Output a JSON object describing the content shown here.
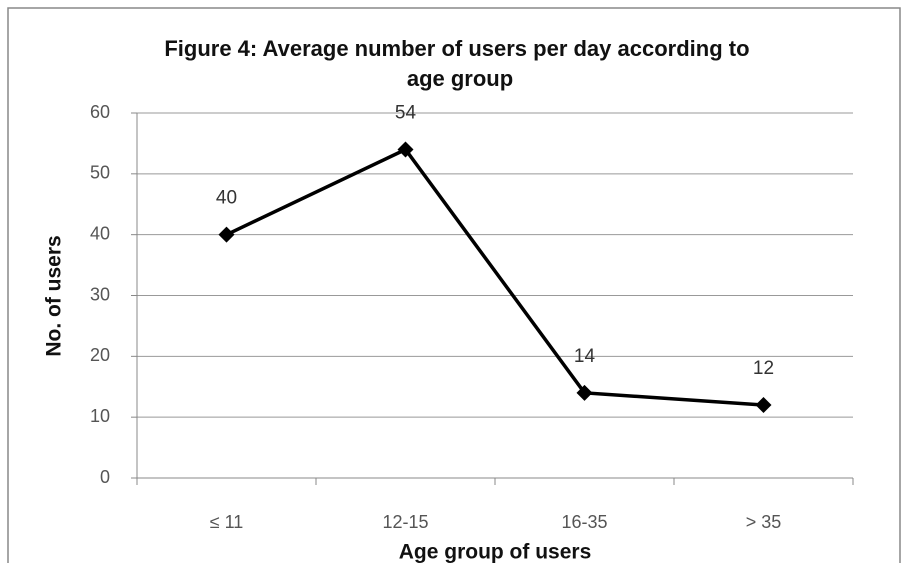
{
  "chart_data": {
    "type": "line",
    "title": "Figure 4: Average number of users per day according to age group",
    "x_label": "Age group of users",
    "y_label": "No. of users",
    "categories": [
      "≤ 11",
      "12-15",
      "16-35",
      "> 35"
    ],
    "values": [
      40,
      54,
      14,
      12
    ],
    "color": "#000000",
    "ylim": [
      0,
      60
    ],
    "yticks": [
      0,
      10,
      20,
      30,
      40,
      50,
      60
    ],
    "grid": true
  }
}
